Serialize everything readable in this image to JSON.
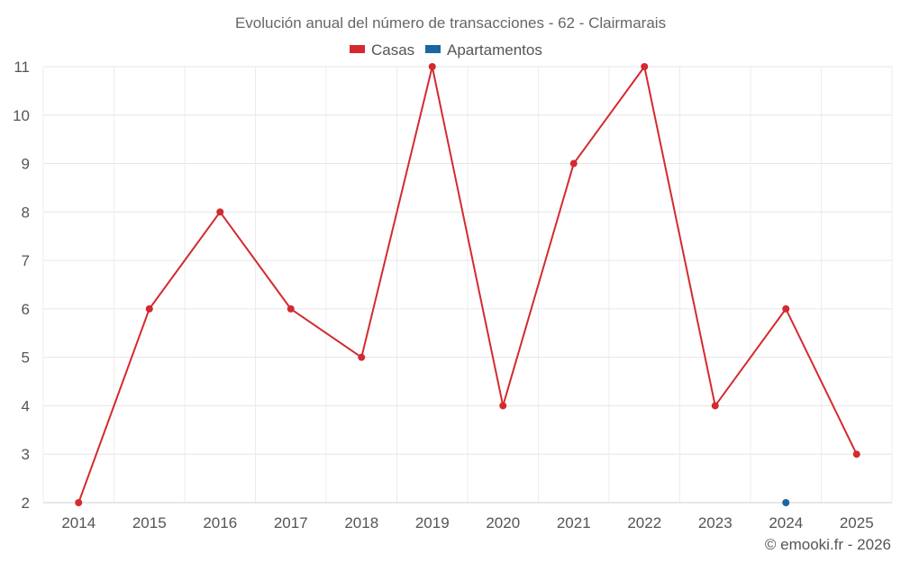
{
  "chart_data": {
    "type": "line",
    "title": "Evolución anual del número de transacciones - 62 - Clairmarais",
    "categories": [
      "2014",
      "2015",
      "2016",
      "2017",
      "2018",
      "2019",
      "2020",
      "2021",
      "2022",
      "2023",
      "2024",
      "2025"
    ],
    "series": [
      {
        "name": "Casas",
        "color": "#d42a2f",
        "values": [
          2,
          6,
          8,
          6,
          5,
          11,
          4,
          9,
          11,
          4,
          6,
          3
        ]
      },
      {
        "name": "Apartamentos",
        "color": "#1a66a0",
        "values": [
          null,
          null,
          null,
          null,
          null,
          null,
          null,
          null,
          null,
          null,
          2,
          null
        ]
      }
    ],
    "ylim": [
      2,
      11
    ],
    "yticks": [
      2,
      3,
      4,
      5,
      6,
      7,
      8,
      9,
      10,
      11
    ],
    "xlabel": "",
    "ylabel": "",
    "grid": true,
    "legend": "top-center"
  },
  "credit": "© emooki.fr - 2026"
}
